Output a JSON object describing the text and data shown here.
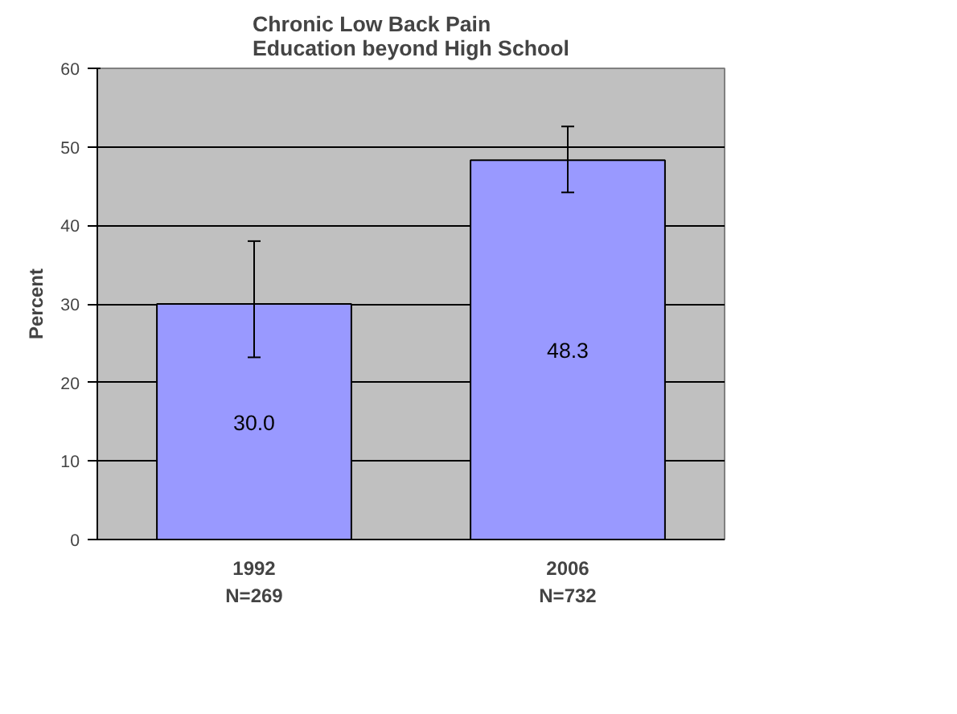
{
  "chart_data": {
    "type": "bar",
    "title": "Chronic Low Back Pain\nEducation beyond High School",
    "ylabel": "Percent",
    "categories": [
      "1992\nN=269",
      "2006\nN=732"
    ],
    "values": [
      30.0,
      48.3
    ],
    "color": "#9999ff",
    "errors": [
      [
        23.2,
        38.0
      ],
      [
        44.2,
        52.6
      ]
    ],
    "value_labels": [
      "30.0",
      "48.3"
    ],
    "ylim": [
      0,
      60
    ],
    "yticks": [
      0,
      10,
      20,
      30,
      40,
      50,
      60
    ],
    "grid": "y"
  }
}
